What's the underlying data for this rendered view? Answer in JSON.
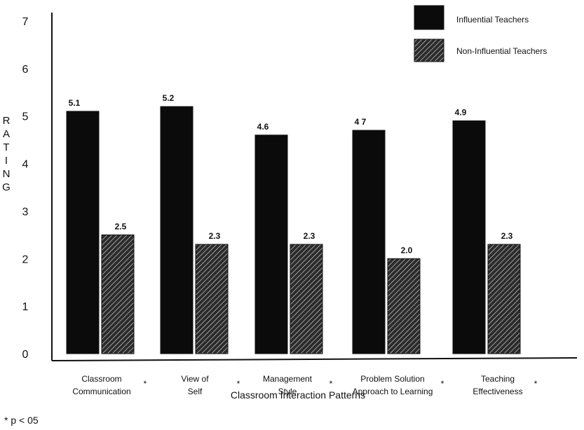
{
  "chart_data": {
    "type": "bar",
    "title": "",
    "xlabel": "Classroom Interaction Patterns",
    "ylabel": "RATING",
    "ylim": [
      0,
      7
    ],
    "yticks": [
      0,
      1,
      2,
      3,
      4,
      5,
      6,
      7
    ],
    "legend_position": "top-right",
    "grid": false,
    "categories": [
      {
        "lines": [
          "Classroom",
          "Communication"
        ],
        "marker": "*"
      },
      {
        "lines": [
          "View of",
          "Self"
        ],
        "marker": "*"
      },
      {
        "lines": [
          "Management",
          "Style"
        ],
        "marker": "*"
      },
      {
        "lines": [
          "Problem Solution",
          "Approach to Learning"
        ],
        "marker": "*"
      },
      {
        "lines": [
          "Teaching",
          "Effectiveness"
        ],
        "marker": "*"
      }
    ],
    "series": [
      {
        "name": "Influential Teachers",
        "pattern": "solid",
        "color": "#0b0b0b",
        "values": [
          5.1,
          5.2,
          4.6,
          4.7,
          4.9
        ],
        "labels": [
          "5.1",
          "5.2",
          "4.6",
          "4 7",
          "4.9"
        ]
      },
      {
        "name": "Non-Influential Teachers",
        "pattern": "hatched",
        "color": "#1a1a1a",
        "values": [
          2.5,
          2.3,
          2.3,
          2.0,
          2.3
        ],
        "labels": [
          "2.5",
          "2.3",
          "2.3",
          "2.0",
          "2.3"
        ]
      }
    ],
    "footnote": "* p < 05"
  }
}
